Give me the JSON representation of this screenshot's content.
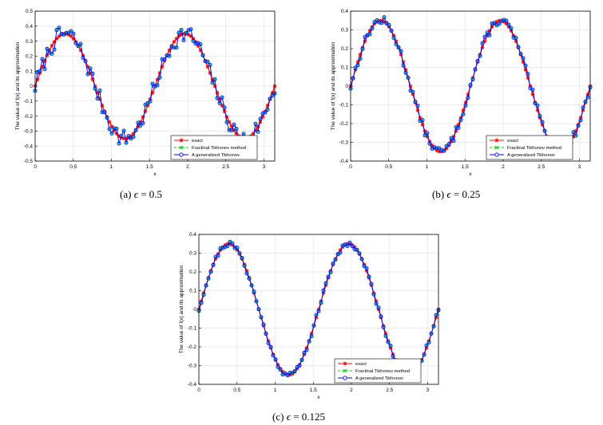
{
  "figure": {
    "captions": [
      {
        "label": "(a)",
        "symbol": "ϵ",
        "value": "= 0.5"
      },
      {
        "label": "(b)",
        "symbol": "ϵ",
        "value": "= 0.25"
      },
      {
        "label": "(c)",
        "symbol": "ϵ",
        "value": "= 0.125"
      }
    ]
  },
  "colors": {
    "exact": "#ff0000",
    "fractional": "#00cc00",
    "generalized": "#0000ff",
    "generalized_marker_fill": "#00ccff"
  },
  "chart_data": [
    {
      "type": "line",
      "xlabel": "x",
      "ylabel": "The value of f(x) and its approximation",
      "xlim": [
        0,
        3.14159
      ],
      "ylim": [
        -0.5,
        0.5
      ],
      "xticks": [
        0,
        0.5,
        1,
        1.5,
        2,
        2.5,
        3
      ],
      "xtick_labels": [
        "0",
        "0.5",
        "1",
        "1.5",
        "2",
        "2.5",
        "3"
      ],
      "yticks": [
        -0.5,
        -0.4,
        -0.3,
        -0.2,
        -0.1,
        0,
        0.1,
        0.2,
        0.3,
        0.4,
        0.5
      ],
      "ytick_labels": [
        "-0.5",
        "-0.4",
        "-0.3",
        "-0.2",
        "-0.1",
        "0",
        "0.1",
        "0.2",
        "0.3",
        "0.4",
        "0.5"
      ],
      "grid": true,
      "legend_position": "bottom-right",
      "n_points": 101,
      "function": "0.35*sin(4x)",
      "series": [
        {
          "name": "exact",
          "color": "#ff0000",
          "marker": "star",
          "line": "solid",
          "noise": 0
        },
        {
          "name": "Fractinal Tikhonov method",
          "color": "#00cc00",
          "marker": "x",
          "line": "dashed",
          "noise": 0.06,
          "seed": 7
        },
        {
          "name": "A generalized Tikhonov",
          "color": "#0000ff",
          "marker": "circle",
          "line": "solid",
          "noise": 0.06,
          "seed": 7
        }
      ]
    },
    {
      "type": "line",
      "xlabel": "x",
      "ylabel": "The value of f(x) and its approximation",
      "xlim": [
        0,
        3.14159
      ],
      "ylim": [
        -0.4,
        0.4
      ],
      "xticks": [
        0,
        0.5,
        1,
        1.5,
        2,
        2.5,
        3
      ],
      "xtick_labels": [
        "0",
        "0.5",
        "1",
        "1.5",
        "2",
        "2.5",
        "3"
      ],
      "yticks": [
        -0.4,
        -0.3,
        -0.2,
        -0.1,
        0,
        0.1,
        0.2,
        0.3,
        0.4
      ],
      "ytick_labels": [
        "-0.4",
        "-0.3",
        "-0.2",
        "-0.1",
        "0",
        "0.1",
        "0.2",
        "0.3",
        "0.4"
      ],
      "grid": true,
      "legend_position": "bottom-right",
      "n_points": 101,
      "function": "0.35*sin(4x)",
      "series": [
        {
          "name": "exact",
          "color": "#ff0000",
          "marker": "star",
          "line": "solid",
          "noise": 0
        },
        {
          "name": "Fractinal Tikhonov method",
          "color": "#00cc00",
          "marker": "x",
          "line": "dashed",
          "noise": 0.025,
          "seed": 13
        },
        {
          "name": "A generalized Tikhonov",
          "color": "#0000ff",
          "marker": "circle",
          "line": "solid",
          "noise": 0.025,
          "seed": 13
        }
      ]
    },
    {
      "type": "line",
      "xlabel": "x",
      "ylabel": "The value of f(x) and its approximation",
      "xlim": [
        0,
        3.14159
      ],
      "ylim": [
        -0.4,
        0.4
      ],
      "xticks": [
        0,
        0.5,
        1,
        1.5,
        2,
        2.5,
        3
      ],
      "xtick_labels": [
        "0",
        "0.5",
        "1",
        "1.5",
        "2",
        "2.5",
        "3"
      ],
      "yticks": [
        -0.4,
        -0.3,
        -0.2,
        -0.1,
        0,
        0.1,
        0.2,
        0.3,
        0.4
      ],
      "ytick_labels": [
        "-0.4",
        "-0.3",
        "-0.2",
        "-0.1",
        "0",
        "0.1",
        "0.2",
        "0.3",
        "0.4"
      ],
      "grid": true,
      "legend_position": "bottom-right",
      "n_points": 101,
      "function": "0.35*sin(4x)",
      "series": [
        {
          "name": "exact",
          "color": "#ff0000",
          "marker": "star",
          "line": "solid",
          "noise": 0
        },
        {
          "name": "Fractinal Tikhonov method",
          "color": "#00cc00",
          "marker": "x",
          "line": "dashed",
          "noise": 0.015,
          "seed": 21
        },
        {
          "name": "A generalized Tikhonov",
          "color": "#0000ff",
          "marker": "circle",
          "line": "solid",
          "noise": 0.015,
          "seed": 21
        }
      ]
    }
  ]
}
